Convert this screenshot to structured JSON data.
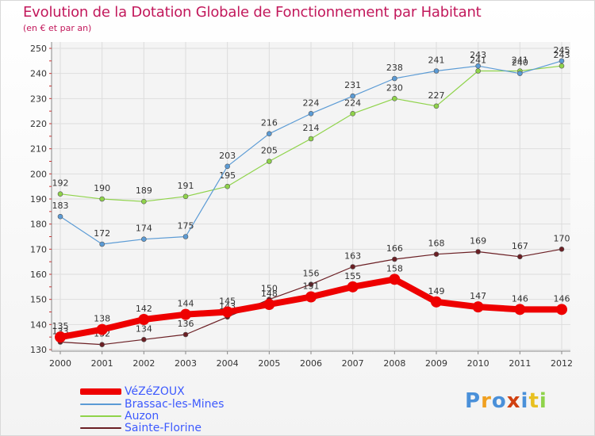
{
  "title": "Evolution de la Dotation Globale de Fonctionnement par Habitant",
  "subtitle": "(en € et par an)",
  "logo_text": "Proxiti",
  "chart_data": {
    "type": "line",
    "x": [
      "2000",
      "2001",
      "2002",
      "2003",
      "2004",
      "2005",
      "2006",
      "2007",
      "2008",
      "2009",
      "2010",
      "2011",
      "2012"
    ],
    "ylim": [
      130,
      250
    ],
    "yticks": [
      130,
      140,
      150,
      160,
      170,
      180,
      190,
      200,
      210,
      220,
      230,
      240,
      250
    ],
    "grid": true,
    "legend_position": "bottom-left",
    "series": [
      {
        "name": "Sainte-Florine",
        "color": "#6b1f24",
        "width": 1.2,
        "marker": 3,
        "values": [
          133,
          132,
          134,
          136,
          143,
          150,
          156,
          163,
          166,
          168,
          169,
          167,
          170
        ]
      },
      {
        "name": "Auzon",
        "color": "#8fd34a",
        "width": 1.2,
        "marker": 3,
        "values": [
          192,
          190,
          189,
          191,
          195,
          205,
          214,
          224,
          230,
          227,
          241,
          241,
          243
        ]
      },
      {
        "name": "Brassac-les-Mines",
        "color": "#5b9bd5",
        "width": 1.2,
        "marker": 3,
        "values": [
          183,
          172,
          174,
          175,
          203,
          216,
          224,
          231,
          238,
          241,
          243,
          240,
          245
        ]
      },
      {
        "name": "VéZéZOUX",
        "color": "#ee0000",
        "width": 8,
        "marker": 7,
        "values": [
          135,
          138,
          142,
          144,
          145,
          148,
          151,
          155,
          158,
          149,
          147,
          146,
          146
        ]
      }
    ]
  }
}
